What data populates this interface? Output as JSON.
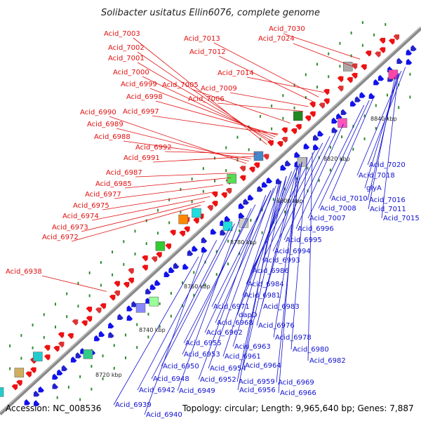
{
  "title": "Solibacter usitatus Ellin6076, complete genome",
  "accession": "Accession: NC_008536",
  "summary": "Topology: circular; Length: 9,965,640 bp; Genes: 7,887",
  "colors": {
    "forward_label": "#e01010",
    "reverse_label": "#1010d0",
    "forward_gene": "#ee1111",
    "reverse_gene": "#1111ee",
    "backbone": "#8a8a8a",
    "ticks": "#2e8b2e"
  },
  "scale_labels": [
    "8720 kbp",
    "8740 kbp",
    "8760 kbp",
    "8780 kbp",
    "8800 kbp",
    "8820 kbp",
    "8840 kbp"
  ],
  "forward_labels": [
    "Acid_7030",
    "Acid_7024",
    "Acid_7013",
    "Acid_7012",
    "Acid_7003",
    "Acid_7002",
    "Acid_7001",
    "Acid_7014",
    "Acid_7000",
    "Acid_7005",
    "Acid_6999",
    "Acid_7009",
    "Acid_6998",
    "Acid_7006",
    "Acid_6997",
    "Acid_6990",
    "Acid_6989",
    "Acid_6988",
    "Acid_6992",
    "Acid_6991",
    "Acid_6987",
    "Acid_6985",
    "Acid_6977",
    "Acid_6975",
    "Acid_6974",
    "Acid_6973",
    "Acid_6972",
    "Acid_6938"
  ],
  "reverse_labels": [
    "Acid_7020",
    "Acid_7018",
    "glyA",
    "Acid_7016",
    "Acid_7010",
    "Acid_7011",
    "Acid_7008",
    "Acid_7015",
    "Acid_7007",
    "Acid_6996",
    "Acid_6995",
    "Acid_6994",
    "Acid_6993",
    "Acid_6986",
    "Acid_6984",
    "Acid_6981",
    "Acid_6983",
    "Acid_6971",
    "dapD",
    "Acid_6968",
    "Acid_6976",
    "Acid_6962",
    "Acid_6978",
    "Acid_6955",
    "Acid_6963",
    "Acid_6980",
    "Acid_6953",
    "Acid_6961",
    "Acid_6982",
    "Acid_6950",
    "Acid_6954",
    "Acid_6964",
    "Acid_6948",
    "Acid_6952",
    "Acid_6969",
    "Acid_6959",
    "Acid_6942",
    "Acid_6949",
    "Acid_6956",
    "Acid_6966",
    "Acid_6939",
    "Acid_6940"
  ]
}
